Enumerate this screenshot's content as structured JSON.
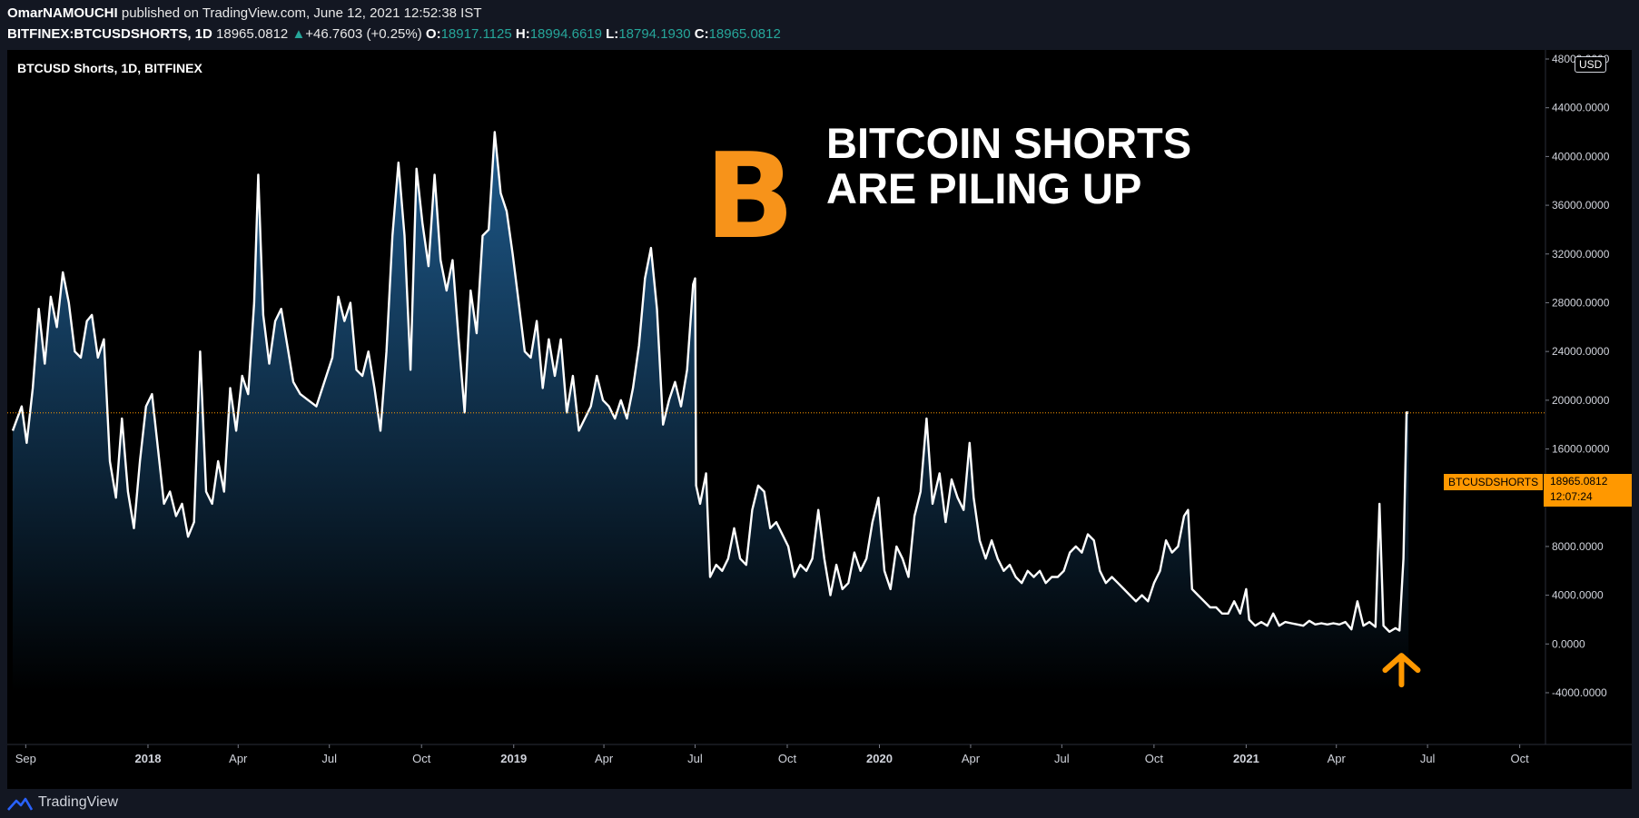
{
  "header": {
    "author": "OmarNAMOUCHI",
    "published": " published on TradingView.com, June 12, 2021 12:52:38 IST",
    "symbol": "BITFINEX:BTCUSDSHORTS, 1D",
    "last": "18965.0812",
    "change_arrow": "▲",
    "change": "+46.7603 (+0.25%)",
    "o_label": "O:",
    "o": "18917.1125",
    "h_label": "H:",
    "h": "18994.6619",
    "l_label": "L:",
    "l": "18794.1930",
    "c_label": "C:",
    "c": "18965.0812"
  },
  "chart": {
    "series_title": "BTCUSD Shorts, 1D, BITFINEX",
    "headline_line1": "BITCOIN SHORTS",
    "headline_line2": "ARE PILING UP",
    "logo_glyph": "B",
    "currency": "USD",
    "price_label": "BTCUSDSHORTS",
    "value": "18965.0812",
    "countdown": "12:07:24",
    "arrow_icon": "up-arrow-icon"
  },
  "colors": {
    "background": "#000000",
    "line": "#ffffff",
    "area_top": "#1e5a8c",
    "accent": "#ff9800",
    "bitcoin": "#f7931a",
    "up": "#26a69a"
  },
  "footer": {
    "brand": "TradingView"
  },
  "chart_data": {
    "type": "area",
    "xlabel": "",
    "ylabel": "",
    "ylim": [
      -4000,
      48000
    ],
    "yticks": [
      "48000.0000",
      "44000.0000",
      "40000.0000",
      "36000.0000",
      "32000.0000",
      "28000.0000",
      "24000.0000",
      "20000.0000",
      "16000.0000",
      "12000.0000",
      "8000.0000",
      "4000.0000",
      "0.0000",
      "-4000.0000"
    ],
    "xticks": [
      {
        "label": "Sep",
        "major": false,
        "date": "2017-09-01"
      },
      {
        "label": "2018",
        "major": true,
        "date": "2018-01-01"
      },
      {
        "label": "Apr",
        "major": false,
        "date": "2018-04-01"
      },
      {
        "label": "Jul",
        "major": false,
        "date": "2018-07-01"
      },
      {
        "label": "Oct",
        "major": false,
        "date": "2018-10-01"
      },
      {
        "label": "2019",
        "major": true,
        "date": "2019-01-01"
      },
      {
        "label": "Apr",
        "major": false,
        "date": "2019-04-01"
      },
      {
        "label": "Jul",
        "major": false,
        "date": "2019-07-01"
      },
      {
        "label": "Oct",
        "major": false,
        "date": "2019-10-01"
      },
      {
        "label": "2020",
        "major": true,
        "date": "2020-01-01"
      },
      {
        "label": "Apr",
        "major": false,
        "date": "2020-04-01"
      },
      {
        "label": "Jul",
        "major": false,
        "date": "2020-07-01"
      },
      {
        "label": "Oct",
        "major": false,
        "date": "2020-10-01"
      },
      {
        "label": "2021",
        "major": true,
        "date": "2021-01-01"
      },
      {
        "label": "Apr",
        "major": false,
        "date": "2021-04-01"
      },
      {
        "label": "Jul",
        "major": false,
        "date": "2021-07-01"
      },
      {
        "label": "Oct",
        "major": false,
        "date": "2021-10-01"
      }
    ],
    "series": [
      {
        "points": [
          [
            "2017-08-19",
            17500
          ],
          [
            "2017-08-28",
            19500
          ],
          [
            "2017-09-02",
            16500
          ],
          [
            "2017-09-08",
            21000
          ],
          [
            "2017-09-14",
            27500
          ],
          [
            "2017-09-20",
            23000
          ],
          [
            "2017-09-26",
            28500
          ],
          [
            "2017-10-02",
            26000
          ],
          [
            "2017-10-08",
            30500
          ],
          [
            "2017-10-14",
            28000
          ],
          [
            "2017-10-20",
            24000
          ],
          [
            "2017-10-26",
            23500
          ],
          [
            "2017-11-01",
            26500
          ],
          [
            "2017-11-06",
            27000
          ],
          [
            "2017-11-12",
            23500
          ],
          [
            "2017-11-18",
            25000
          ],
          [
            "2017-11-24",
            15000
          ],
          [
            "2017-11-30",
            12000
          ],
          [
            "2017-12-06",
            18500
          ],
          [
            "2017-12-12",
            12500
          ],
          [
            "2017-12-18",
            9500
          ],
          [
            "2017-12-24",
            15000
          ],
          [
            "2017-12-30",
            19500
          ],
          [
            "2018-01-05",
            20500
          ],
          [
            "2018-01-11",
            16000
          ],
          [
            "2018-01-17",
            11500
          ],
          [
            "2018-01-23",
            12500
          ],
          [
            "2018-01-29",
            10500
          ],
          [
            "2018-02-04",
            11500
          ],
          [
            "2018-02-10",
            8800
          ],
          [
            "2018-02-16",
            10000
          ],
          [
            "2018-02-22",
            24000
          ],
          [
            "2018-02-28",
            12500
          ],
          [
            "2018-03-06",
            11500
          ],
          [
            "2018-03-12",
            15000
          ],
          [
            "2018-03-18",
            12500
          ],
          [
            "2018-03-24",
            21000
          ],
          [
            "2018-03-30",
            17500
          ],
          [
            "2018-04-05",
            22000
          ],
          [
            "2018-04-11",
            20500
          ],
          [
            "2018-04-17",
            28000
          ],
          [
            "2018-04-21",
            38500
          ],
          [
            "2018-04-26",
            27000
          ],
          [
            "2018-05-02",
            23000
          ],
          [
            "2018-05-08",
            26500
          ],
          [
            "2018-05-14",
            27500
          ],
          [
            "2018-05-20",
            24500
          ],
          [
            "2018-05-26",
            21500
          ],
          [
            "2018-06-02",
            20500
          ],
          [
            "2018-06-10",
            20000
          ],
          [
            "2018-06-18",
            19500
          ],
          [
            "2018-06-26",
            21500
          ],
          [
            "2018-07-04",
            23500
          ],
          [
            "2018-07-10",
            28500
          ],
          [
            "2018-07-16",
            26500
          ],
          [
            "2018-07-22",
            28000
          ],
          [
            "2018-07-28",
            22500
          ],
          [
            "2018-08-03",
            22000
          ],
          [
            "2018-08-09",
            24000
          ],
          [
            "2018-08-15",
            21000
          ],
          [
            "2018-08-21",
            17500
          ],
          [
            "2018-08-27",
            24000
          ],
          [
            "2018-09-02",
            33500
          ],
          [
            "2018-09-08",
            39500
          ],
          [
            "2018-09-14",
            33500
          ],
          [
            "2018-09-20",
            22500
          ],
          [
            "2018-09-26",
            39000
          ],
          [
            "2018-10-02",
            34500
          ],
          [
            "2018-10-08",
            31000
          ],
          [
            "2018-10-14",
            38500
          ],
          [
            "2018-10-20",
            31500
          ],
          [
            "2018-10-26",
            29000
          ],
          [
            "2018-11-01",
            31500
          ],
          [
            "2018-11-07",
            25000
          ],
          [
            "2018-11-13",
            19000
          ],
          [
            "2018-11-19",
            29000
          ],
          [
            "2018-11-25",
            25500
          ],
          [
            "2018-12-01",
            33500
          ],
          [
            "2018-12-07",
            34000
          ],
          [
            "2018-12-13",
            42000
          ],
          [
            "2018-12-19",
            37000
          ],
          [
            "2018-12-25",
            35500
          ],
          [
            "2018-12-31",
            32000
          ],
          [
            "2019-01-06",
            28000
          ],
          [
            "2019-01-12",
            24000
          ],
          [
            "2019-01-18",
            23500
          ],
          [
            "2019-01-24",
            26500
          ],
          [
            "2019-01-30",
            21000
          ],
          [
            "2019-02-05",
            25000
          ],
          [
            "2019-02-11",
            22000
          ],
          [
            "2019-02-17",
            25000
          ],
          [
            "2019-02-23",
            19000
          ],
          [
            "2019-03-01",
            22000
          ],
          [
            "2019-03-07",
            17500
          ],
          [
            "2019-03-13",
            18500
          ],
          [
            "2019-03-19",
            19500
          ],
          [
            "2019-03-25",
            22000
          ],
          [
            "2019-03-31",
            20000
          ],
          [
            "2019-04-06",
            19500
          ],
          [
            "2019-04-12",
            18500
          ],
          [
            "2019-04-18",
            20000
          ],
          [
            "2019-04-24",
            18500
          ],
          [
            "2019-04-30",
            21000
          ],
          [
            "2019-05-06",
            24500
          ],
          [
            "2019-05-12",
            30000
          ],
          [
            "2019-05-18",
            32500
          ],
          [
            "2019-05-24",
            27500
          ],
          [
            "2019-05-30",
            18000
          ],
          [
            "2019-06-05",
            20000
          ],
          [
            "2019-06-11",
            21500
          ],
          [
            "2019-06-17",
            19500
          ],
          [
            "2019-06-23",
            22500
          ],
          [
            "2019-06-29",
            29500
          ],
          [
            "2019-07-01",
            30000
          ],
          [
            "2019-07-02",
            13000
          ],
          [
            "2019-07-06",
            11500
          ],
          [
            "2019-07-12",
            14000
          ],
          [
            "2019-07-16",
            5500
          ],
          [
            "2019-07-22",
            6500
          ],
          [
            "2019-07-28",
            6000
          ],
          [
            "2019-08-03",
            7000
          ],
          [
            "2019-08-09",
            9500
          ],
          [
            "2019-08-15",
            7000
          ],
          [
            "2019-08-21",
            6500
          ],
          [
            "2019-08-27",
            11000
          ],
          [
            "2019-09-02",
            13000
          ],
          [
            "2019-09-08",
            12500
          ],
          [
            "2019-09-14",
            9500
          ],
          [
            "2019-09-20",
            10000
          ],
          [
            "2019-09-26",
            9000
          ],
          [
            "2019-10-02",
            8000
          ],
          [
            "2019-10-08",
            5500
          ],
          [
            "2019-10-14",
            6500
          ],
          [
            "2019-10-20",
            6000
          ],
          [
            "2019-10-26",
            7000
          ],
          [
            "2019-11-01",
            11000
          ],
          [
            "2019-11-07",
            7000
          ],
          [
            "2019-11-13",
            4000
          ],
          [
            "2019-11-19",
            6500
          ],
          [
            "2019-11-25",
            4500
          ],
          [
            "2019-12-01",
            5000
          ],
          [
            "2019-12-07",
            7500
          ],
          [
            "2019-12-13",
            6000
          ],
          [
            "2019-12-19",
            7000
          ],
          [
            "2019-12-25",
            10000
          ],
          [
            "2019-12-31",
            12000
          ],
          [
            "2020-01-06",
            6000
          ],
          [
            "2020-01-12",
            4500
          ],
          [
            "2020-01-18",
            8000
          ],
          [
            "2020-01-24",
            7000
          ],
          [
            "2020-01-30",
            5500
          ],
          [
            "2020-02-05",
            10500
          ],
          [
            "2020-02-11",
            12500
          ],
          [
            "2020-02-17",
            18500
          ],
          [
            "2020-02-23",
            11500
          ],
          [
            "2020-03-01",
            14000
          ],
          [
            "2020-03-07",
            10000
          ],
          [
            "2020-03-13",
            13500
          ],
          [
            "2020-03-19",
            12000
          ],
          [
            "2020-03-25",
            11000
          ],
          [
            "2020-03-31",
            16500
          ],
          [
            "2020-04-04",
            12000
          ],
          [
            "2020-04-10",
            8500
          ],
          [
            "2020-04-16",
            7000
          ],
          [
            "2020-04-22",
            8500
          ],
          [
            "2020-04-28",
            7000
          ],
          [
            "2020-05-04",
            6000
          ],
          [
            "2020-05-10",
            6500
          ],
          [
            "2020-05-16",
            5500
          ],
          [
            "2020-05-22",
            5000
          ],
          [
            "2020-05-28",
            6000
          ],
          [
            "2020-06-03",
            5500
          ],
          [
            "2020-06-09",
            6000
          ],
          [
            "2020-06-15",
            5000
          ],
          [
            "2020-06-21",
            5500
          ],
          [
            "2020-06-27",
            5500
          ],
          [
            "2020-07-03",
            6000
          ],
          [
            "2020-07-09",
            7500
          ],
          [
            "2020-07-15",
            8000
          ],
          [
            "2020-07-21",
            7500
          ],
          [
            "2020-07-27",
            9000
          ],
          [
            "2020-08-02",
            8500
          ],
          [
            "2020-08-08",
            6000
          ],
          [
            "2020-08-14",
            5000
          ],
          [
            "2020-08-20",
            5500
          ],
          [
            "2020-08-26",
            5000
          ],
          [
            "2020-09-01",
            4500
          ],
          [
            "2020-09-07",
            4000
          ],
          [
            "2020-09-13",
            3500
          ],
          [
            "2020-09-19",
            4000
          ],
          [
            "2020-09-25",
            3500
          ],
          [
            "2020-10-01",
            5000
          ],
          [
            "2020-10-07",
            6000
          ],
          [
            "2020-10-13",
            8500
          ],
          [
            "2020-10-19",
            7500
          ],
          [
            "2020-10-25",
            8000
          ],
          [
            "2020-10-31",
            10500
          ],
          [
            "2020-11-04",
            11000
          ],
          [
            "2020-11-08",
            4500
          ],
          [
            "2020-11-14",
            4000
          ],
          [
            "2020-11-20",
            3500
          ],
          [
            "2020-11-26",
            3000
          ],
          [
            "2020-12-02",
            3000
          ],
          [
            "2020-12-08",
            2500
          ],
          [
            "2020-12-14",
            2500
          ],
          [
            "2020-12-20",
            3500
          ],
          [
            "2020-12-26",
            2500
          ],
          [
            "2021-01-01",
            4500
          ],
          [
            "2021-01-04",
            2000
          ],
          [
            "2021-01-10",
            1500
          ],
          [
            "2021-01-16",
            1800
          ],
          [
            "2021-01-22",
            1500
          ],
          [
            "2021-01-28",
            2500
          ],
          [
            "2021-02-03",
            1500
          ],
          [
            "2021-02-09",
            1800
          ],
          [
            "2021-02-15",
            1700
          ],
          [
            "2021-02-21",
            1600
          ],
          [
            "2021-02-27",
            1500
          ],
          [
            "2021-03-05",
            1900
          ],
          [
            "2021-03-11",
            1600
          ],
          [
            "2021-03-17",
            1700
          ],
          [
            "2021-03-23",
            1600
          ],
          [
            "2021-03-29",
            1700
          ],
          [
            "2021-04-04",
            1600
          ],
          [
            "2021-04-10",
            1800
          ],
          [
            "2021-04-16",
            1200
          ],
          [
            "2021-04-22",
            3500
          ],
          [
            "2021-04-28",
            1500
          ],
          [
            "2021-05-04",
            1800
          ],
          [
            "2021-05-10",
            1400
          ],
          [
            "2021-05-14",
            11500
          ],
          [
            "2021-05-18",
            1500
          ],
          [
            "2021-05-24",
            1000
          ],
          [
            "2021-05-30",
            1300
          ],
          [
            "2021-06-03",
            1100
          ],
          [
            "2021-06-07",
            7000
          ],
          [
            "2021-06-10",
            19000
          ],
          [
            "2021-06-12",
            18965
          ]
        ]
      }
    ]
  }
}
